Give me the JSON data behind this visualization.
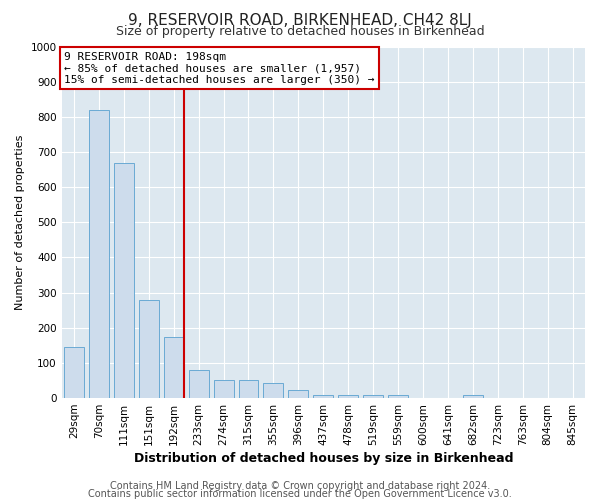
{
  "title": "9, RESERVOIR ROAD, BIRKENHEAD, CH42 8LJ",
  "subtitle": "Size of property relative to detached houses in Birkenhead",
  "xlabel": "Distribution of detached houses by size in Birkenhead",
  "ylabel": "Number of detached properties",
  "categories": [
    "29sqm",
    "70sqm",
    "111sqm",
    "151sqm",
    "192sqm",
    "233sqm",
    "274sqm",
    "315sqm",
    "355sqm",
    "396sqm",
    "437sqm",
    "478sqm",
    "519sqm",
    "559sqm",
    "600sqm",
    "641sqm",
    "682sqm",
    "723sqm",
    "763sqm",
    "804sqm",
    "845sqm"
  ],
  "values": [
    145,
    820,
    670,
    280,
    175,
    80,
    52,
    50,
    42,
    22,
    10,
    10,
    8,
    8,
    0,
    0,
    10,
    0,
    0,
    0,
    0
  ],
  "bar_color": "#cddcec",
  "bar_edge_color": "#6aaad4",
  "red_line_index": 4,
  "property_label": "9 RESERVOIR ROAD: 198sqm",
  "annotation_line1": "← 85% of detached houses are smaller (1,957)",
  "annotation_line2": "15% of semi-detached houses are larger (350) →",
  "annotation_box_color": "#ffffff",
  "annotation_box_edge_color": "#cc0000",
  "red_line_color": "#cc0000",
  "ylim": [
    0,
    1000
  ],
  "footer1": "Contains HM Land Registry data © Crown copyright and database right 2024.",
  "footer2": "Contains public sector information licensed under the Open Government Licence v3.0.",
  "fig_bg_color": "#ffffff",
  "plot_bg_color": "#dde8f0",
  "grid_color": "#ffffff",
  "title_fontsize": 11,
  "subtitle_fontsize": 9,
  "xlabel_fontsize": 9,
  "ylabel_fontsize": 8,
  "tick_fontsize": 7.5,
  "annotation_fontsize": 8,
  "footer_fontsize": 7
}
